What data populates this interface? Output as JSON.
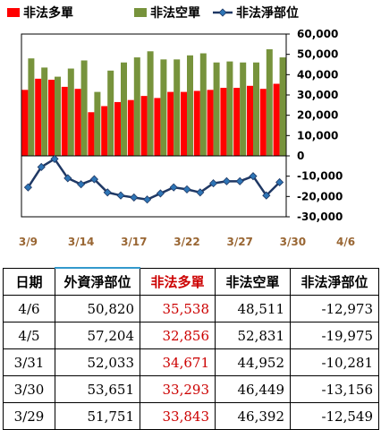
{
  "chart_data": {
    "type": "bar",
    "x_labels": [
      "3/9",
      "3/14",
      "3/17",
      "3/22",
      "3/27",
      "3/30",
      "4/6"
    ],
    "x_label_positions": [
      0,
      4,
      8,
      12,
      16,
      20,
      24
    ],
    "ylim": [
      -30000,
      60000
    ],
    "yticks": [
      60000,
      50000,
      40000,
      30000,
      20000,
      10000,
      0,
      -10000,
      -20000,
      -30000
    ],
    "ytick_labels": [
      "60,000",
      "50,000",
      "40,000",
      "30,000",
      "20,000",
      "10,000",
      "0",
      "-10,000",
      "-20,000",
      "-30,000"
    ],
    "legend_position": "top",
    "grid": false,
    "series": [
      {
        "name": "非法多單",
        "type": "bar",
        "color": "#ff0000",
        "values": [
          32500,
          38000,
          37500,
          34000,
          33000,
          21500,
          24500,
          26500,
          27500,
          29500,
          28500,
          31500,
          31500,
          32000,
          32500,
          33500,
          33500,
          34500,
          33000,
          35500
        ]
      },
      {
        "name": "非法空單",
        "type": "bar",
        "color": "#77933c",
        "values": [
          48000,
          43500,
          39000,
          43000,
          47000,
          31500,
          42000,
          46000,
          48500,
          51500,
          47500,
          47500,
          49500,
          50500,
          46000,
          46500,
          46000,
          46000,
          52500,
          48500
        ]
      },
      {
        "name": "非法淨部位",
        "type": "line",
        "color": "#1f3864",
        "values": [
          -15500,
          -5500,
          -1500,
          -11000,
          -14000,
          -11500,
          -18000,
          -19500,
          -20500,
          -21500,
          -18500,
          -15500,
          -16500,
          -18000,
          -13500,
          -12500,
          -12500,
          -10000,
          -19500,
          -13000
        ]
      }
    ]
  },
  "table": {
    "headers": [
      "日期",
      "外資淨部位",
      "非法多單",
      "非法空單",
      "非法淨部位"
    ],
    "rows": [
      [
        "4/6",
        "50,820",
        "35,538",
        "48,511",
        "-12,973"
      ],
      [
        "4/5",
        "57,204",
        "32,856",
        "52,831",
        "-19,975"
      ],
      [
        "3/31",
        "52,033",
        "34,671",
        "44,952",
        "-10,281"
      ],
      [
        "3/30",
        "53,651",
        "33,293",
        "46,449",
        "-13,156"
      ],
      [
        "3/29",
        "51,751",
        "33,843",
        "46,392",
        "-12,549"
      ]
    ]
  }
}
